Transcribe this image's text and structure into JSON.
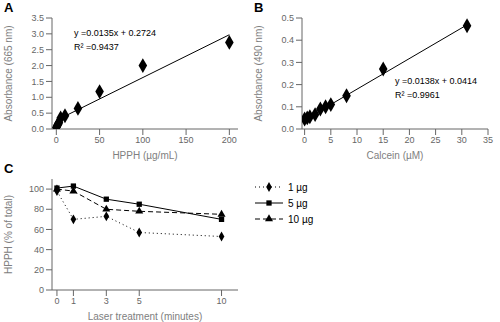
{
  "chart_data": [
    {
      "type": "scatter",
      "title": "A",
      "x_label": "HPPH (µg/mL)",
      "y_label": "Absorbance (665 nm)",
      "annotations": [
        "y =0.0135x + 0.2724",
        "R² =0.9437"
      ],
      "series": [
        {
          "type": "scatter",
          "marker": "diamond",
          "color": "black",
          "x": [
            0,
            1,
            2,
            3,
            5,
            10,
            25,
            50,
            100,
            200
          ],
          "values": [
            0.05,
            0.1,
            0.15,
            0.2,
            0.35,
            0.42,
            0.65,
            1.18,
            2.0,
            2.73
          ]
        },
        {
          "type": "line",
          "line_style": "solid",
          "color": "black",
          "x": [
            0,
            200
          ],
          "values": [
            0.2724,
            2.9724
          ]
        }
      ],
      "xlim": [
        -5,
        210
      ],
      "xticks": [
        0,
        50,
        100,
        150,
        200
      ],
      "ylim": [
        0,
        3.5
      ],
      "yticks": [
        {
          "value": 0,
          "label": "0.0"
        },
        0.5,
        {
          "value": 1,
          "label": "1.0"
        },
        1.5,
        {
          "value": 2,
          "label": "2.0"
        },
        2.5,
        {
          "value": 3,
          "label": "3.0"
        },
        3.5
      ],
      "grid": false
    },
    {
      "type": "scatter",
      "title": "B",
      "x_label": "Calcein (µM)",
      "y_label": "Absorbance (490 nm)",
      "annotations": [
        "y =0.0138x + 0.0414",
        "R² =0.9961"
      ],
      "series": [
        {
          "type": "scatter",
          "marker": "diamond",
          "color": "black",
          "x": [
            0,
            0.5,
            1,
            2,
            3,
            4,
            5,
            8,
            15,
            31
          ],
          "values": [
            0.045,
            0.05,
            0.055,
            0.065,
            0.09,
            0.1,
            0.11,
            0.15,
            0.27,
            0.465
          ]
        },
        {
          "type": "line",
          "line_style": "solid",
          "color": "black",
          "x": [
            0,
            31
          ],
          "values": [
            0.0414,
            0.4692
          ]
        }
      ],
      "xlim": [
        -0.5,
        35
      ],
      "xticks": [
        0,
        5,
        10,
        15,
        20,
        25,
        30,
        35
      ],
      "ylim": [
        0,
        0.5
      ],
      "yticks": [
        {
          "value": 0,
          "label": "0.0"
        },
        0.1,
        0.2,
        0.3,
        0.4,
        0.5
      ],
      "grid": false
    },
    {
      "type": "line",
      "title": "C",
      "x_label": "Laser treatment (minutes)",
      "y_label": "HPPH (% of total)",
      "x": [
        0,
        1,
        3,
        5,
        10
      ],
      "series": [
        {
          "name": "1 µg",
          "color": "black",
          "marker": "diamond",
          "line_style": "dotted",
          "values": [
            98,
            70,
            73,
            57,
            53
          ]
        },
        {
          "name": "5 µg",
          "color": "black",
          "marker": "square",
          "line_style": "solid",
          "values": [
            101,
            103,
            90,
            85,
            70
          ]
        },
        {
          "name": "10 µg",
          "color": "black",
          "marker": "triangle",
          "line_style": "dashed",
          "values": [
            100,
            98,
            80,
            78,
            75
          ]
        }
      ],
      "xlim": [
        -0.3,
        11
      ],
      "xticks": [
        0,
        1,
        3,
        5,
        10
      ],
      "ylim": [
        0,
        110
      ],
      "yticks": [
        0,
        20,
        40,
        60,
        80,
        100
      ],
      "legend": "right",
      "grid": false
    }
  ]
}
